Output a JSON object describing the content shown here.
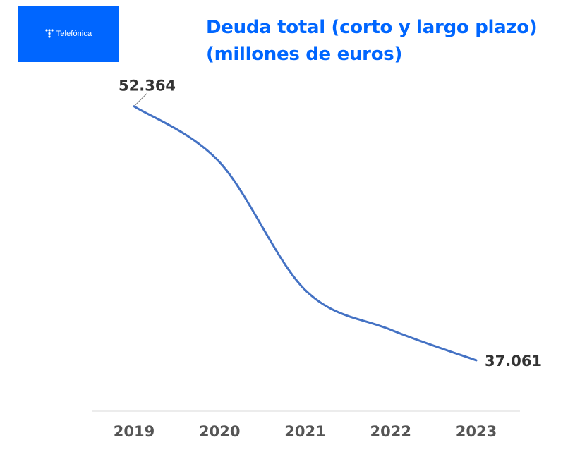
{
  "logo": {
    "text": "Telefónica",
    "bg_color": "#0066ff"
  },
  "chart_data": {
    "type": "line",
    "title_line1": "Deuda total (corto y largo plazo)",
    "title_line2": "(millones de euros)",
    "categories": [
      "2019",
      "2020",
      "2021",
      "2022",
      "2023"
    ],
    "series": [
      {
        "name": "Deuda total",
        "values": [
          52364,
          49000,
          41300,
          38900,
          37061
        ],
        "color": "#4472c4"
      }
    ],
    "data_labels": [
      {
        "category": "2019",
        "text": "52.364"
      },
      {
        "category": "2023",
        "text": "37.061"
      }
    ],
    "ylim": [
      34000,
      53500
    ],
    "xlabel": "",
    "ylabel": "",
    "grid": false,
    "title_color": "#0066ff"
  }
}
